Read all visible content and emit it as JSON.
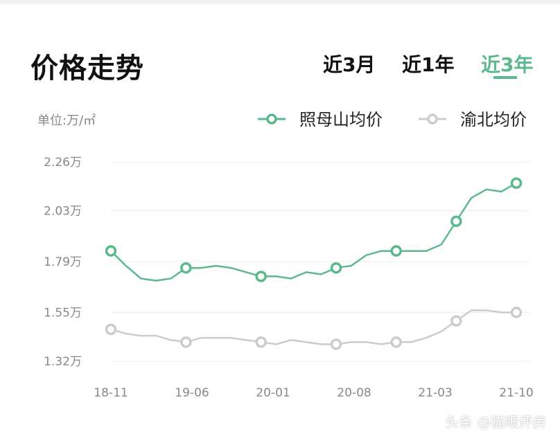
{
  "header": {
    "title": "价格走势",
    "tabs": [
      {
        "label": "近3月",
        "active": false
      },
      {
        "label": "近1年",
        "active": false
      },
      {
        "label": "近3年",
        "active": true
      }
    ]
  },
  "unit_label": "单位:万/㎡",
  "watermark": "头条 @猫眼评房",
  "colors": {
    "series_a": "#5bb98c",
    "series_b": "#cccccc",
    "active_tab": "#5bb98c"
  },
  "chart_data": {
    "type": "line",
    "title": "",
    "xlabel": "",
    "ylabel": "",
    "ylim": [
      1.32,
      2.26
    ],
    "yticks": [
      2.26,
      2.03,
      1.79,
      1.55,
      1.32
    ],
    "ytick_labels": [
      "2.26万",
      "2.03万",
      "1.79万",
      "1.55万",
      "1.32万"
    ],
    "xtick_labels": [
      "18-11",
      "19-06",
      "20-01",
      "20-08",
      "21-03",
      "21-10"
    ],
    "legend": {
      "position": "top-right"
    },
    "series": [
      {
        "name": "照母山均价",
        "color": "#5bb98c",
        "values": [
          1.84,
          1.77,
          1.71,
          1.7,
          1.71,
          1.76,
          1.76,
          1.77,
          1.76,
          1.74,
          1.72,
          1.72,
          1.71,
          1.74,
          1.73,
          1.76,
          1.77,
          1.82,
          1.84,
          1.84,
          1.84,
          1.84,
          1.87,
          1.98,
          2.09,
          2.13,
          2.12,
          2.16
        ],
        "marker_indices": [
          0,
          5,
          10,
          15,
          19,
          23,
          27
        ]
      },
      {
        "name": "渝北均价",
        "color": "#cccccc",
        "values": [
          1.47,
          1.45,
          1.44,
          1.44,
          1.42,
          1.41,
          1.43,
          1.43,
          1.43,
          1.42,
          1.41,
          1.4,
          1.42,
          1.41,
          1.4,
          1.4,
          1.41,
          1.41,
          1.4,
          1.41,
          1.41,
          1.43,
          1.46,
          1.51,
          1.56,
          1.56,
          1.55,
          1.55
        ],
        "marker_indices": [
          0,
          5,
          10,
          15,
          19,
          23,
          27
        ]
      }
    ]
  }
}
